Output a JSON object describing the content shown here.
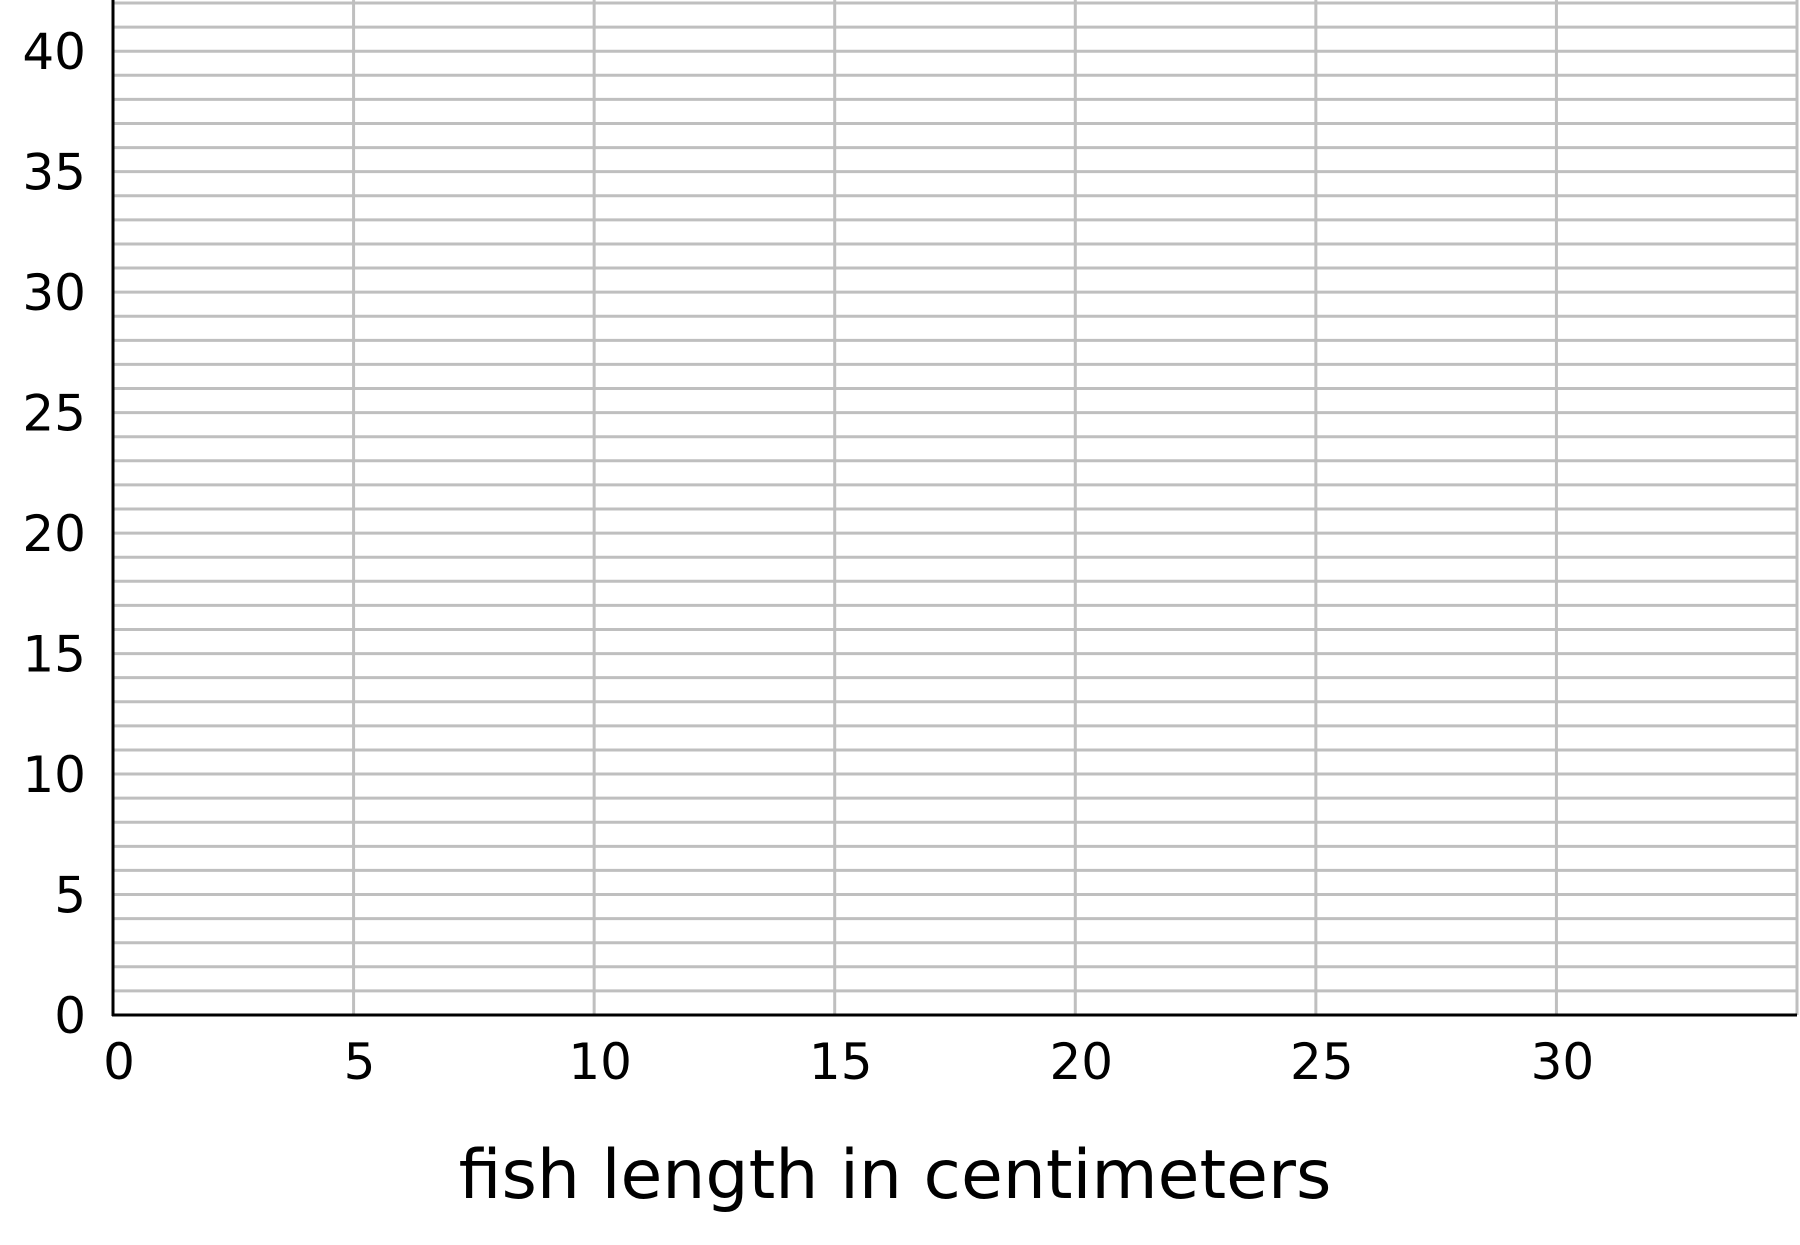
{
  "chart_data": {
    "type": "scatter",
    "title": "",
    "xlabel": "fish length in centimeters",
    "ylabel": "",
    "xlim": [
      0,
      35
    ],
    "ylim": [
      0,
      42
    ],
    "x_ticks": [
      0,
      5,
      10,
      15,
      20,
      25,
      30
    ],
    "y_ticks": [
      0,
      5,
      10,
      15,
      20,
      25,
      30,
      35,
      40
    ],
    "x_grid_step": 5,
    "y_grid_step": 1,
    "grid": true,
    "grid_color": "#bfbfbf",
    "axis_color": "#000000",
    "series": []
  }
}
